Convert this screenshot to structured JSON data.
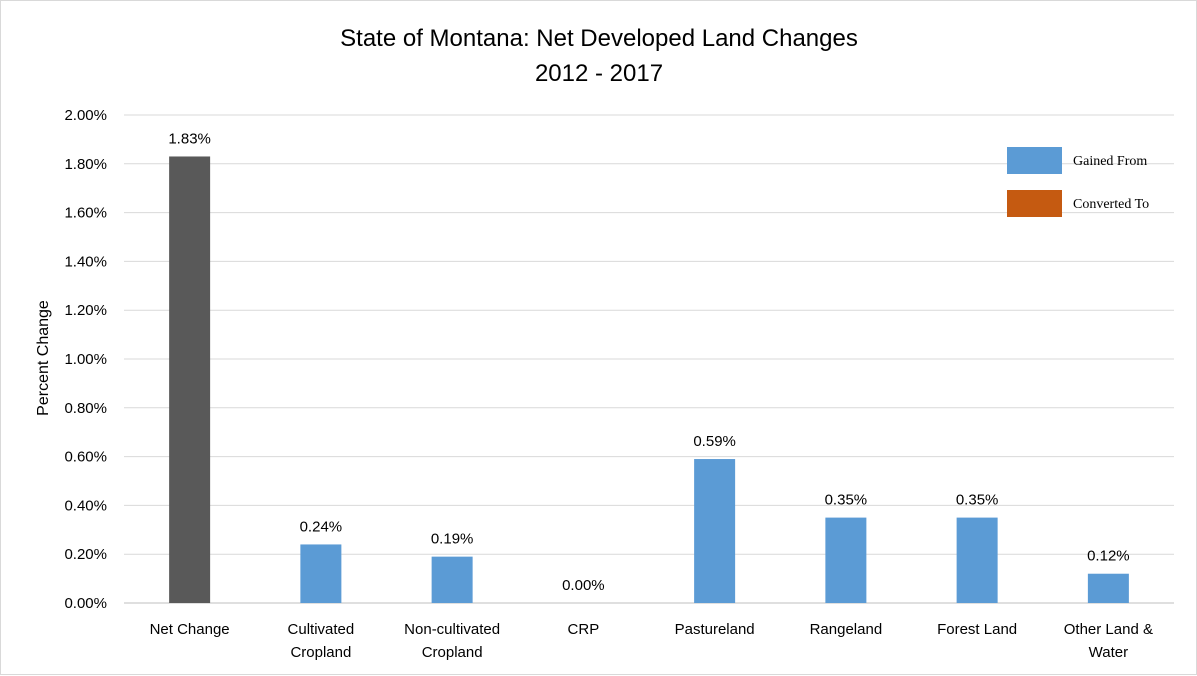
{
  "chart_data": {
    "type": "bar",
    "title": [
      "State of Montana: Net Developed Land Changes",
      "2012 - 2017"
    ],
    "xlabel": "",
    "ylabel": "Percent Change",
    "ylim": [
      0,
      2.0
    ],
    "y_ticks": [
      "0.00%",
      "0.20%",
      "0.40%",
      "0.60%",
      "0.80%",
      "1.00%",
      "1.20%",
      "1.40%",
      "1.60%",
      "1.80%",
      "2.00%"
    ],
    "grid": true,
    "categories": [
      [
        "Net Change"
      ],
      [
        "Cultivated",
        "Cropland"
      ],
      [
        "Non-cultivated",
        "Cropland"
      ],
      [
        "CRP"
      ],
      [
        "Pastureland"
      ],
      [
        "Rangeland"
      ],
      [
        "Forest Land"
      ],
      [
        "Other Land &",
        "Water"
      ]
    ],
    "values": [
      1.83,
      0.24,
      0.19,
      0.0,
      0.59,
      0.35,
      0.35,
      0.12
    ],
    "data_labels": [
      "1.83%",
      "0.24%",
      "0.19%",
      "0.00%",
      "0.59%",
      "0.35%",
      "0.35%",
      "0.12%"
    ],
    "bar_colors": [
      "#595959",
      "#5b9bd5",
      "#5b9bd5",
      "#5b9bd5",
      "#5b9bd5",
      "#5b9bd5",
      "#5b9bd5",
      "#5b9bd5"
    ],
    "legend": {
      "position": "top-right",
      "entries": [
        {
          "label": "Gained From",
          "color": "#5b9bd5"
        },
        {
          "label": "Converted To",
          "color": "#c55a11"
        }
      ]
    }
  }
}
